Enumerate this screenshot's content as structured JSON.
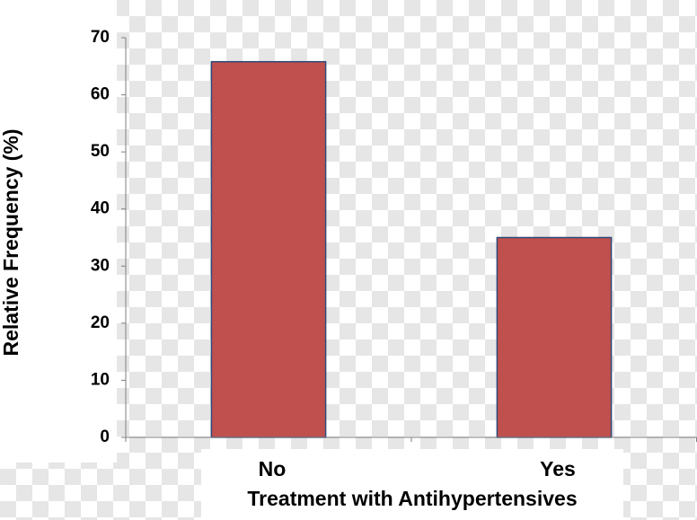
{
  "chart_data": {
    "type": "bar",
    "x_label": "Treatment with Antihypertensives",
    "y_label": "Relative Frequency (%)",
    "categories": [
      "No",
      "Yes"
    ],
    "values": [
      65.8,
      35
    ],
    "color": "#c0504d",
    "ylim": [
      0,
      70
    ],
    "yticks": [
      0,
      10,
      20,
      30,
      40,
      50,
      60,
      70
    ],
    "grid": false
  }
}
